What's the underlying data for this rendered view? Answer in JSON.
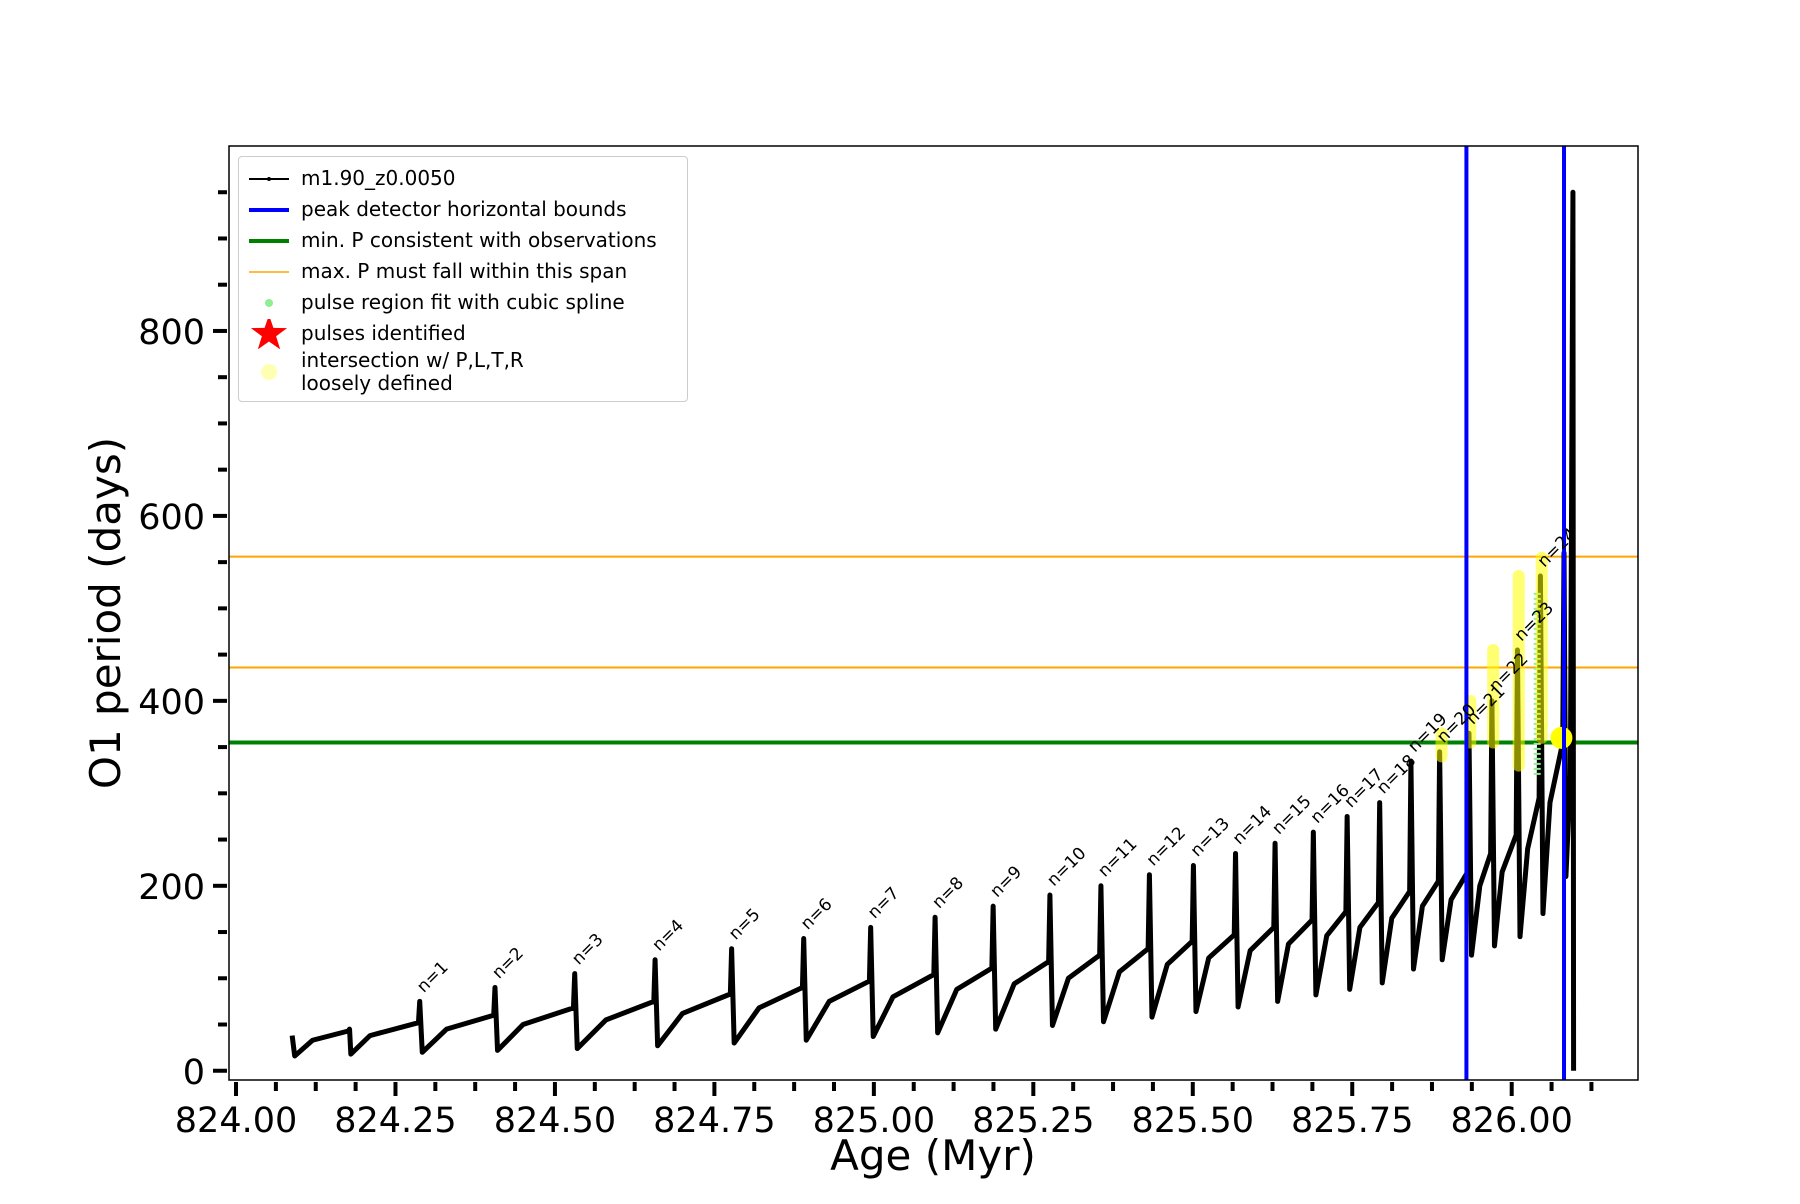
{
  "chart_data": {
    "type": "line",
    "xlabel": "Age (Myr)",
    "ylabel": "O1 period (days)",
    "xlim": [
      823.989,
      826.198
    ],
    "ylim": [
      -10,
      1000
    ],
    "xticks": [
      {
        "value": 824,
        "label": "824.00"
      },
      {
        "value": 824.25,
        "label": "824.25"
      },
      {
        "value": 824.5,
        "label": "824.50"
      },
      {
        "value": 824.75,
        "label": "824.75"
      },
      {
        "value": 825,
        "label": "825.00"
      },
      {
        "value": 825.25,
        "label": "825.25"
      },
      {
        "value": 825.5,
        "label": "825.50"
      },
      {
        "value": 825.75,
        "label": "825.75"
      },
      {
        "value": 826,
        "label": "826.00"
      }
    ],
    "xminor": [
      824.0625,
      824.125,
      824.1875,
      824.3125,
      824.375,
      824.4375,
      824.5625,
      824.625,
      824.6875,
      824.8125,
      824.875,
      824.9375,
      825.0625,
      825.125,
      825.1875,
      825.3125,
      825.375,
      825.4375,
      825.5625,
      825.625,
      825.6875,
      825.8125,
      825.875,
      825.9375,
      826.0625,
      826.125
    ],
    "yticks": [
      0,
      200,
      400,
      600,
      800
    ],
    "yminor": [
      50,
      100,
      150,
      250,
      300,
      350,
      450,
      500,
      550,
      650,
      700,
      750,
      850,
      900,
      950
    ],
    "legend": "upper left",
    "series": [
      {
        "name": "m1.90_z0.0050",
        "color": "#000000",
        "x": [
          824.088,
          824.092,
          824.12,
          824.176,
          824.178,
          824.18,
          824.21,
          824.286,
          824.288,
          824.292,
          824.33,
          824.404,
          824.406,
          824.41,
          824.45,
          824.529,
          824.531,
          824.535,
          824.58,
          824.655,
          824.657,
          824.661,
          824.7,
          824.775,
          824.777,
          824.781,
          824.82,
          824.888,
          824.89,
          824.894,
          824.93,
          824.993,
          824.995,
          824.999,
          825.03,
          825.094,
          825.096,
          825.1,
          825.13,
          825.185,
          825.187,
          825.191,
          825.22,
          825.274,
          825.276,
          825.28,
          825.305,
          825.354,
          825.356,
          825.36,
          825.385,
          825.43,
          825.432,
          825.436,
          825.46,
          825.499,
          825.501,
          825.505,
          825.525,
          825.565,
          825.567,
          825.571,
          825.59,
          825.627,
          825.629,
          825.633,
          825.65,
          825.687,
          825.689,
          825.693,
          825.71,
          825.74,
          825.742,
          825.746,
          825.762,
          825.791,
          825.793,
          825.797,
          825.812,
          825.84,
          825.842,
          825.846,
          825.86,
          825.885,
          825.887,
          825.891,
          825.905,
          825.931,
          825.933,
          825.937,
          825.95,
          825.967,
          825.969,
          825.973,
          825.985,
          826.007,
          826.009,
          826.013,
          826.025,
          826.043,
          826.045,
          826.049,
          826.06,
          826.08,
          826.082,
          826.085,
          826.092,
          826.096,
          826.097
        ],
        "values": [
          38,
          16,
          33,
          43,
          45,
          18,
          38,
          52,
          75,
          20,
          45,
          60,
          90,
          22,
          50,
          68,
          105,
          24,
          55,
          75,
          120,
          27,
          62,
          83,
          132,
          30,
          68,
          90,
          143,
          33,
          75,
          97,
          155,
          37,
          80,
          104,
          166,
          41,
          88,
          111,
          178,
          45,
          94,
          118,
          190,
          49,
          100,
          125,
          200,
          53,
          107,
          132,
          212,
          58,
          115,
          140,
          222,
          64,
          122,
          147,
          235,
          69,
          130,
          155,
          246,
          75,
          137,
          163,
          258,
          82,
          146,
          172,
          275,
          88,
          155,
          182,
          290,
          95,
          165,
          194,
          335,
          110,
          178,
          205,
          345,
          120,
          185,
          215,
          365,
          125,
          200,
          235,
          400,
          135,
          215,
          255,
          455,
          145,
          240,
          295,
          535,
          170,
          290,
          355,
          560,
          210,
          320,
          950,
          0
        ]
      }
    ],
    "vlines": {
      "name": "peak detector horizontal bounds",
      "color": "#0000ff",
      "x": [
        825.929,
        826.082
      ]
    },
    "hlines": [
      {
        "name": "min. P consistent with observations",
        "color": "#008000",
        "y": [
          355
        ]
      },
      {
        "name": "max. P must fall within this span",
        "color": "#ffa500",
        "y": [
          436,
          556
        ]
      }
    ],
    "spline": {
      "name": "pulse region fit with cubic spline",
      "color": "#90ee90",
      "x": [
        826.04
      ],
      "ymin": [
        320
      ],
      "ymax": [
        520
      ]
    },
    "stars": {
      "name": "pulses identified",
      "color": "#ff0000"
    },
    "intersection": {
      "name": "intersection w/ P,L,T,R\nloosely defined",
      "color": "#ffff00",
      "x": [
        825.89,
        825.935,
        825.971,
        826.011,
        826.047
      ],
      "ymin": [
        340,
        355,
        355,
        330,
        360
      ],
      "ymax": [
        365,
        400,
        455,
        535,
        555
      ],
      "point_x": [
        826.078
      ],
      "point_y": [
        360
      ]
    },
    "annotations": [
      {
        "text": "n=1",
        "x": 824.288,
        "y": 75
      },
      {
        "text": "n=2",
        "x": 824.406,
        "y": 90
      },
      {
        "text": "n=3",
        "x": 824.531,
        "y": 105
      },
      {
        "text": "n=4",
        "x": 824.657,
        "y": 120
      },
      {
        "text": "n=5",
        "x": 824.777,
        "y": 132
      },
      {
        "text": "n=6",
        "x": 824.89,
        "y": 143
      },
      {
        "text": "n=7",
        "x": 824.995,
        "y": 155
      },
      {
        "text": "n=8",
        "x": 825.096,
        "y": 166
      },
      {
        "text": "n=9",
        "x": 825.187,
        "y": 178
      },
      {
        "text": "n=10",
        "x": 825.276,
        "y": 190
      },
      {
        "text": "n=11",
        "x": 825.356,
        "y": 200
      },
      {
        "text": "n=12",
        "x": 825.432,
        "y": 212
      },
      {
        "text": "n=13",
        "x": 825.501,
        "y": 222
      },
      {
        "text": "n=14",
        "x": 825.567,
        "y": 235
      },
      {
        "text": "n=15",
        "x": 825.629,
        "y": 246
      },
      {
        "text": "n=16",
        "x": 825.689,
        "y": 258
      },
      {
        "text": "n=17",
        "x": 825.742,
        "y": 275
      },
      {
        "text": "n=18",
        "x": 825.793,
        "y": 290
      },
      {
        "text": "n=19",
        "x": 825.842,
        "y": 335
      },
      {
        "text": "n=20",
        "x": 825.887,
        "y": 345
      },
      {
        "text": "n=21",
        "x": 825.933,
        "y": 365
      },
      {
        "text": "n=22",
        "x": 825.969,
        "y": 400
      },
      {
        "text": "n=23",
        "x": 826.009,
        "y": 455
      },
      {
        "text": "n=24",
        "x": 826.045,
        "y": 535
      }
    ]
  }
}
